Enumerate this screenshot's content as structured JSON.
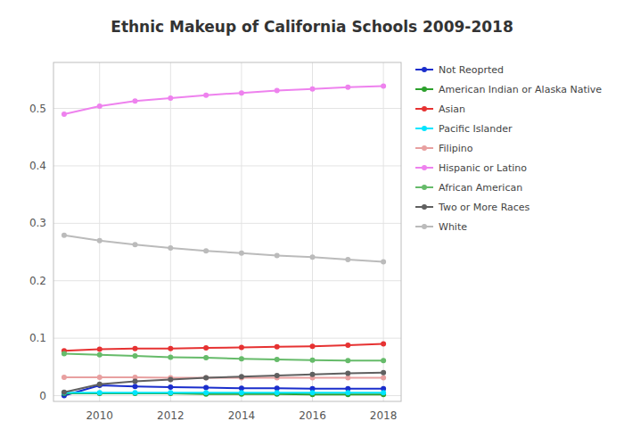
{
  "chart_data": {
    "type": "line",
    "title": "Ethnic Makeup of California Schools 2009-2018",
    "x": [
      2009,
      2010,
      2011,
      2012,
      2013,
      2014,
      2015,
      2016,
      2017,
      2018
    ],
    "series": [
      {
        "name": "Not Reoprted",
        "color": "#1a2ecc",
        "values": [
          0.0,
          0.018,
          0.016,
          0.015,
          0.014,
          0.013,
          0.013,
          0.012,
          0.012,
          0.012
        ]
      },
      {
        "name": "American Indian or Alaska Native",
        "color": "#2ca02c",
        "values": [
          0.004,
          0.004,
          0.004,
          0.004,
          0.003,
          0.003,
          0.003,
          0.002,
          0.002,
          0.002
        ]
      },
      {
        "name": "Asian",
        "color": "#e63232",
        "values": [
          0.078,
          0.081,
          0.082,
          0.082,
          0.083,
          0.084,
          0.085,
          0.086,
          0.088,
          0.09
        ]
      },
      {
        "name": "Pacific Islander",
        "color": "#00e5ff",
        "values": [
          0.005,
          0.005,
          0.005,
          0.005,
          0.005,
          0.005,
          0.005,
          0.005,
          0.005,
          0.005
        ]
      },
      {
        "name": "Filipino",
        "color": "#e8a0a0",
        "values": [
          0.032,
          0.032,
          0.032,
          0.031,
          0.031,
          0.031,
          0.031,
          0.031,
          0.031,
          0.031
        ]
      },
      {
        "name": "Hispanic or Latino",
        "color": "#ee82ee",
        "values": [
          0.49,
          0.504,
          0.513,
          0.518,
          0.523,
          0.527,
          0.531,
          0.534,
          0.537,
          0.539
        ]
      },
      {
        "name": "African American",
        "color": "#66bb6a",
        "values": [
          0.073,
          0.071,
          0.069,
          0.067,
          0.066,
          0.064,
          0.063,
          0.062,
          0.061,
          0.061
        ]
      },
      {
        "name": "Two or More Races",
        "color": "#606060",
        "values": [
          0.006,
          0.02,
          0.025,
          0.028,
          0.031,
          0.033,
          0.035,
          0.037,
          0.039,
          0.04
        ]
      },
      {
        "name": "White",
        "color": "#bbbbbb",
        "values": [
          0.279,
          0.27,
          0.263,
          0.257,
          0.252,
          0.248,
          0.244,
          0.241,
          0.237,
          0.233
        ]
      }
    ],
    "xlim": [
      2008.7,
      2018.5
    ],
    "ylim": [
      -0.01,
      0.58
    ],
    "xticks": [
      2010,
      2012,
      2014,
      2016,
      2018
    ],
    "yticks": [
      0,
      0.1,
      0.2,
      0.3,
      0.4,
      0.5
    ],
    "grid": true,
    "legend": "right",
    "marker": "circle"
  }
}
